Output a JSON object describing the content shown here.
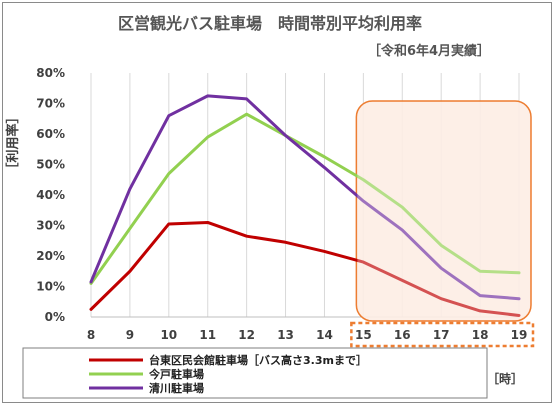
{
  "chart_data": {
    "type": "line",
    "title": "区営観光バス駐車場　時間帯別平均利用率",
    "subtitle": "［令和6年4月実績］",
    "ylabel": "［利用率］",
    "xlabel": "［時］",
    "x": [
      8,
      9,
      10,
      11,
      12,
      13,
      14,
      15,
      16,
      17,
      18,
      19
    ],
    "x_tick_labels": [
      "8",
      "9",
      "10",
      "11",
      "12",
      "13",
      "14",
      "15",
      "16",
      "17",
      "18",
      "19"
    ],
    "y_tick_labels": [
      "0%",
      "10%",
      "20%",
      "30%",
      "40%",
      "50%",
      "60%",
      "70%",
      "80%"
    ],
    "ylim": [
      0,
      80
    ],
    "grid": "vertical",
    "legend_position": "bottom",
    "highlight_range": [
      15,
      19
    ],
    "series": [
      {
        "name": "台東区民会館駐車場［バス高さ3.3mまで］",
        "color": "#c00000",
        "values": [
          2.5,
          15,
          30.5,
          31,
          26.5,
          24.5,
          21.5,
          18,
          12,
          6,
          2,
          0.5
        ]
      },
      {
        "name": "今戸駐車場",
        "color": "#92d050",
        "values": [
          11,
          29,
          47,
          59,
          66.5,
          59.5,
          52.5,
          45,
          36,
          23.5,
          15,
          14.5
        ]
      },
      {
        "name": "清川駐車場",
        "color": "#7030a0",
        "values": [
          11.5,
          42,
          66,
          72.5,
          71.5,
          59.5,
          49,
          38,
          28.5,
          16,
          7,
          6
        ]
      }
    ],
    "colors": {
      "highlight_fill": "#fbe3d6",
      "highlight_stroke": "#ed7d31"
    }
  }
}
